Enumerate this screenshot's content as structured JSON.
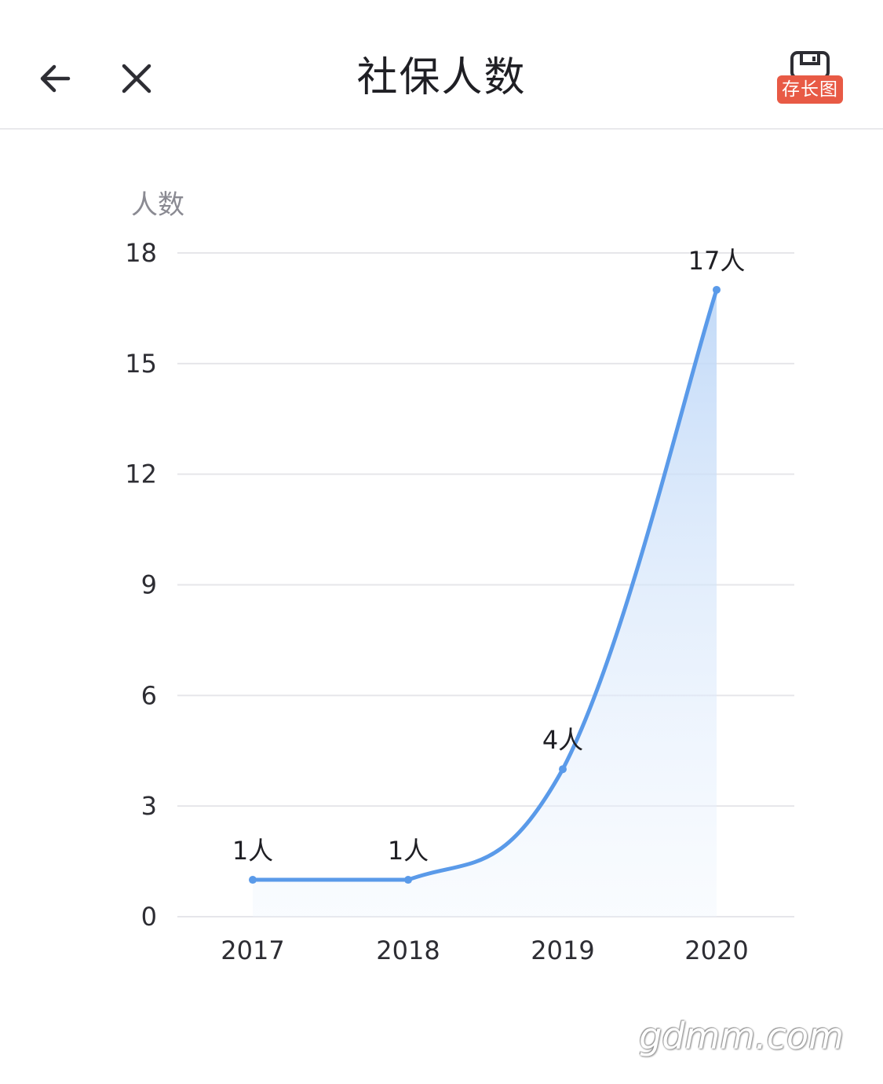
{
  "header": {
    "title": "社保人数",
    "back_icon": "arrow-left-icon",
    "close_icon": "close-icon",
    "save_icon": "floppy-disk-icon",
    "save_label": "存长图",
    "save_color": "#e85a45"
  },
  "chart_data": {
    "type": "area",
    "ylabel": "人数",
    "xlabel": "",
    "categories": [
      "2017",
      "2018",
      "2019",
      "2020"
    ],
    "values": [
      1,
      1,
      4,
      17
    ],
    "data_labels": [
      "1人",
      "1人",
      "4人",
      "17人"
    ],
    "ylim": [
      0,
      18
    ],
    "yticks": [
      "0",
      "3",
      "6",
      "9",
      "12",
      "15",
      "18"
    ],
    "grid": true,
    "line_color": "#5a9ae9",
    "fill_color": "#cfe2fb"
  },
  "watermark": "gdmm.com"
}
